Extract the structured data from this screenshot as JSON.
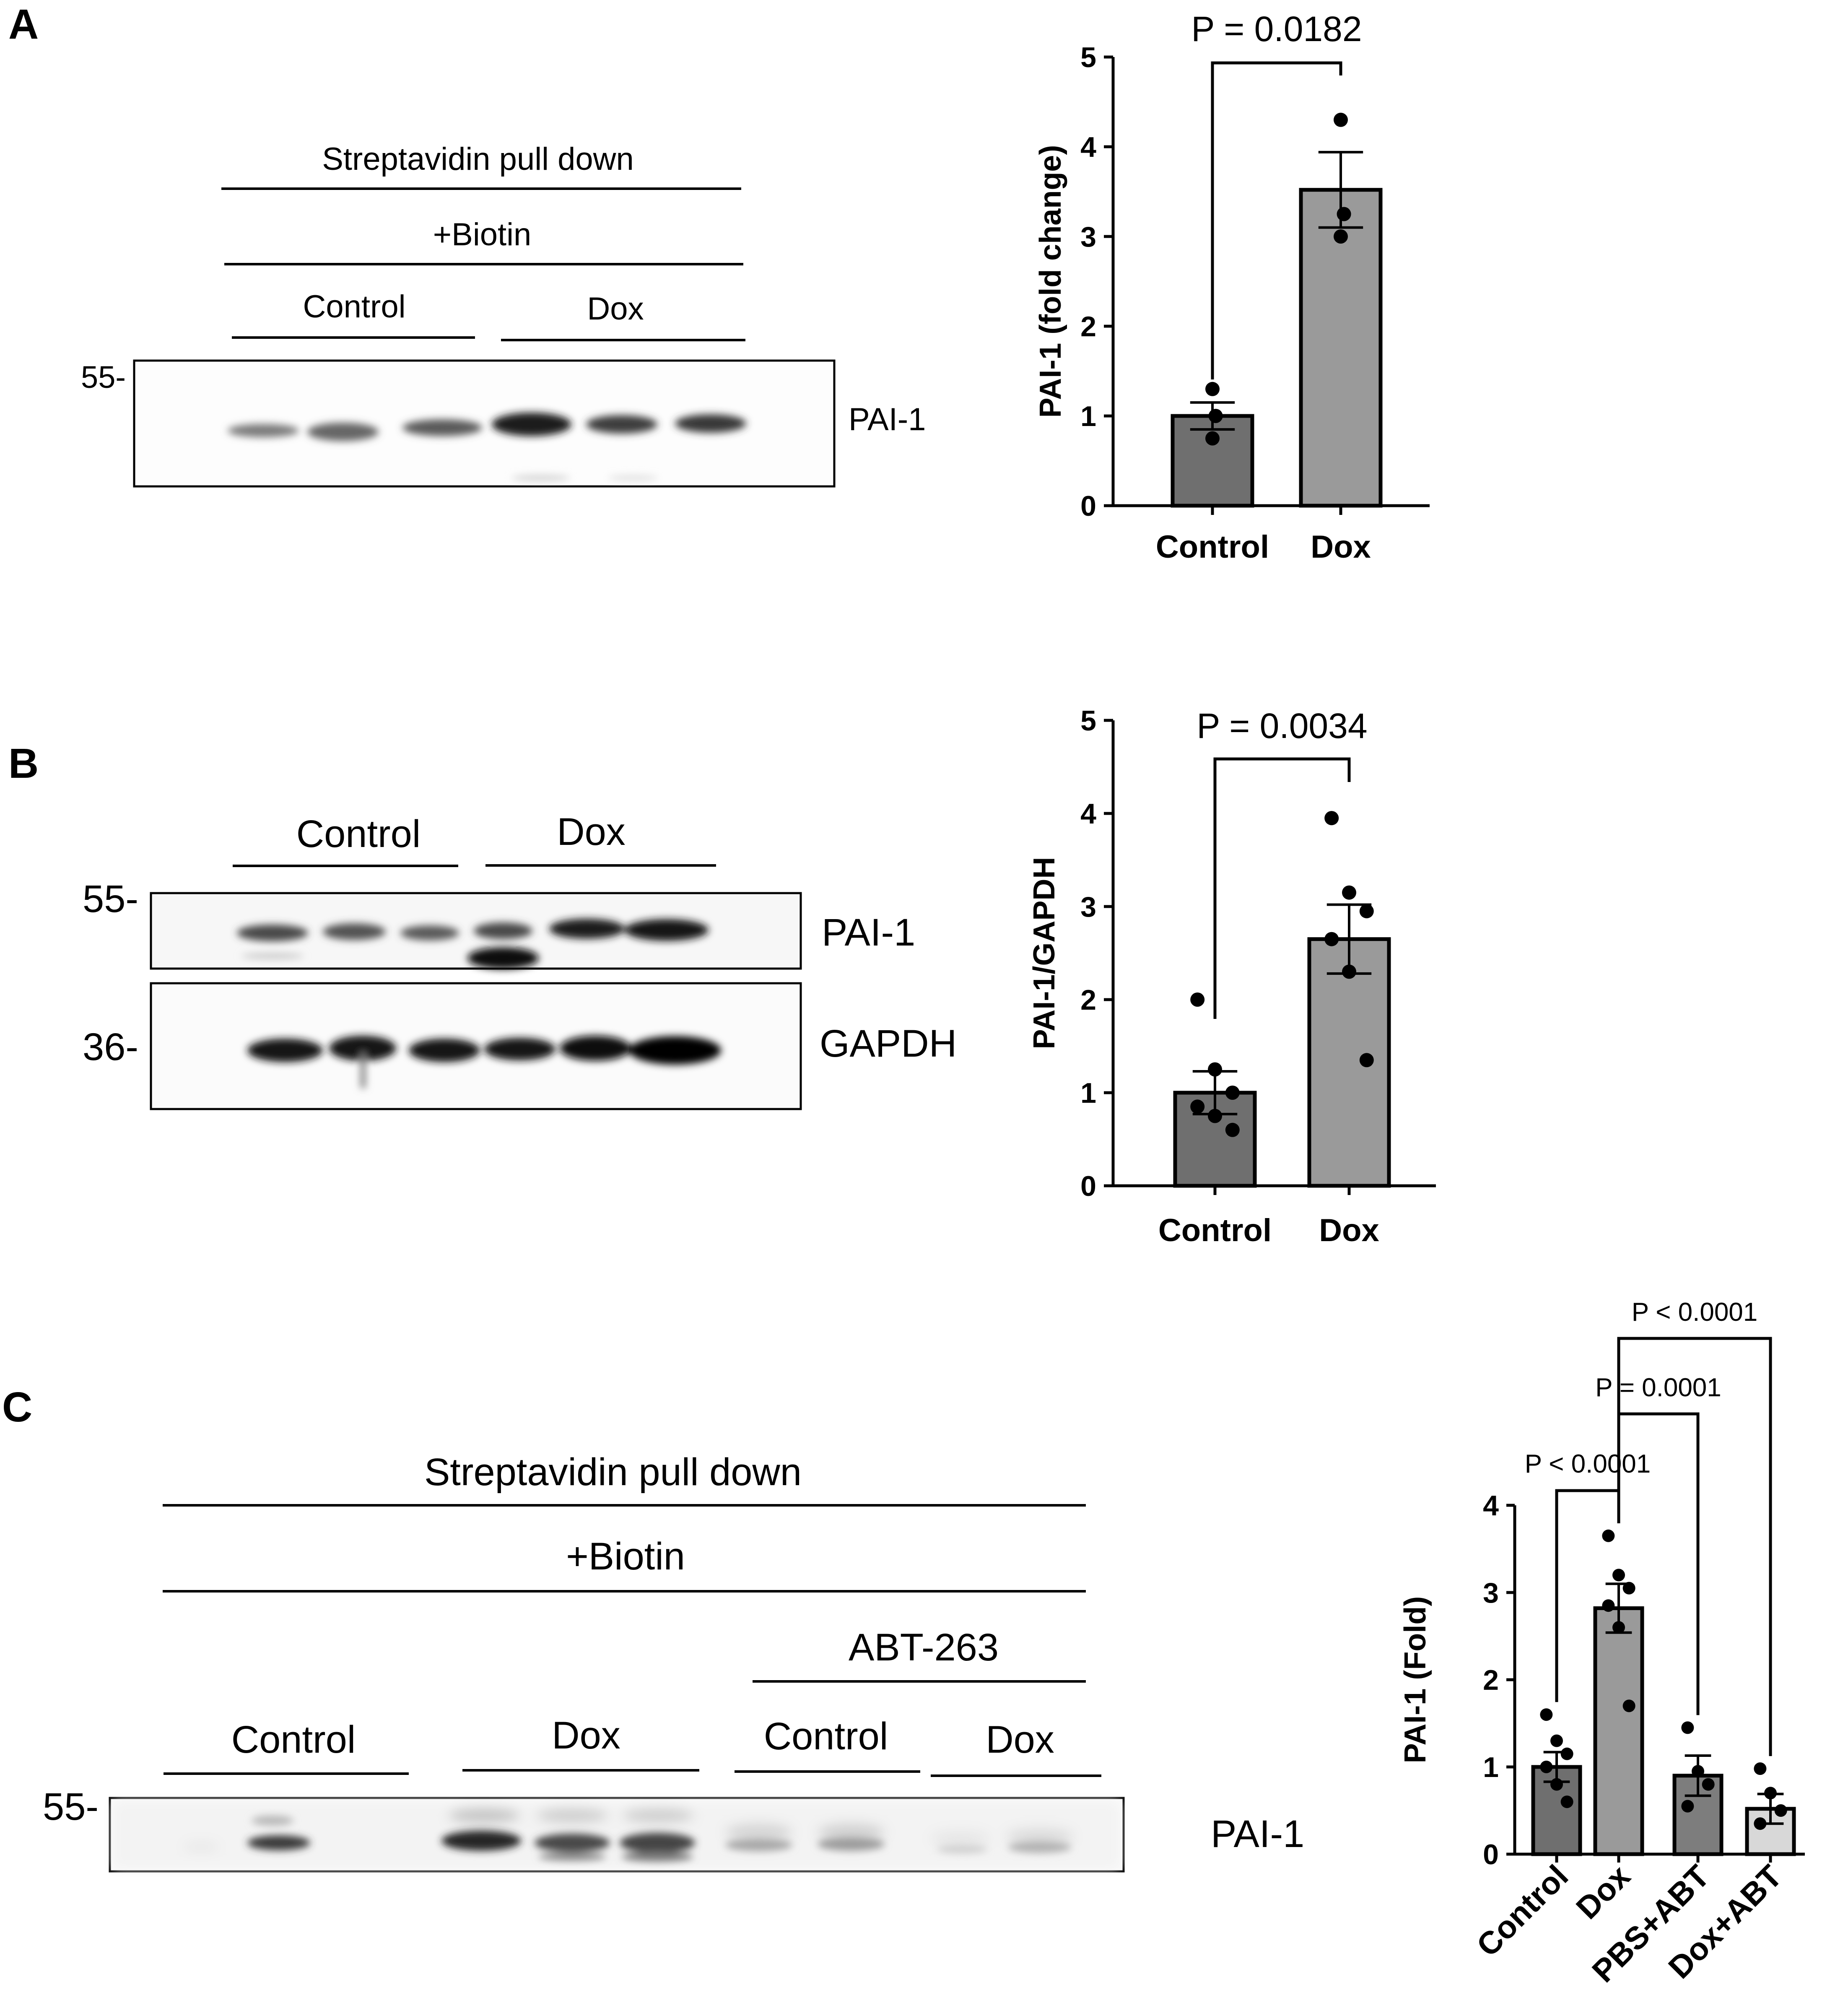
{
  "panels": {
    "A": {
      "label": "A",
      "blot": {
        "header1": "Streptavidin pull down",
        "header2": "+Biotin",
        "group_left": "Control",
        "group_right": "Dox",
        "mw_marker": "55-",
        "band_label": "PAI-1"
      }
    },
    "B": {
      "label": "B",
      "blot": {
        "group_left": "Control",
        "group_right": "Dox",
        "mw_top": "55-",
        "mw_bottom": "36-",
        "band_top": "PAI-1",
        "band_bottom": "GAPDH"
      }
    },
    "C": {
      "label": "C",
      "blot": {
        "header1": "Streptavidin pull down",
        "header2": "+Biotin",
        "treatment": "ABT-263",
        "group1": "Control",
        "group2": "Dox",
        "group3": "Control",
        "group4": "Dox",
        "mw_marker": "55-",
        "band_label": "PAI-1"
      }
    }
  },
  "chart_data": [
    {
      "panel": "A",
      "type": "bar",
      "categories": [
        "Control",
        "Dox"
      ],
      "values": [
        1.0,
        3.52
      ],
      "sem": [
        0.15,
        0.42
      ],
      "points": [
        [
          1.3,
          1.0,
          0.75
        ],
        [
          4.3,
          3.25,
          3.0
        ]
      ],
      "ylabel": "PAI-1 (fold change)",
      "ylim": [
        0,
        5
      ],
      "yticks": [
        "0",
        "1",
        "2",
        "3",
        "4",
        "5"
      ],
      "bar_colors": [
        "#6f6f6f",
        "#9a9a9a"
      ],
      "comparisons": [
        {
          "from": "Control",
          "to": "Dox",
          "label": "P = 0.0182"
        }
      ]
    },
    {
      "panel": "B",
      "type": "bar",
      "categories": [
        "Control",
        "Dox"
      ],
      "values": [
        1.0,
        2.65
      ],
      "sem": [
        0.23,
        0.37
      ],
      "points": [
        [
          2.0,
          1.25,
          1.0,
          0.85,
          0.75,
          0.6
        ],
        [
          3.95,
          3.15,
          2.95,
          2.65,
          2.3,
          1.35
        ]
      ],
      "ylabel": "PAI-1/GAPDH",
      "ylim": [
        0,
        5
      ],
      "yticks": [
        "0",
        "1",
        "2",
        "3",
        "4",
        "5"
      ],
      "bar_colors": [
        "#6f6f6f",
        "#9a9a9a"
      ],
      "comparisons": [
        {
          "from": "Control",
          "to": "Dox",
          "label": "P = 0.0034"
        }
      ]
    },
    {
      "panel": "C",
      "type": "bar",
      "categories": [
        "Control",
        "Dox",
        "PBS+ABT",
        "Dox+ABT"
      ],
      "values": [
        1.0,
        2.82,
        0.9,
        0.52
      ],
      "sem": [
        0.17,
        0.28,
        0.23,
        0.17
      ],
      "points": [
        [
          1.6,
          1.3,
          1.15,
          1.0,
          0.8,
          0.6
        ],
        [
          3.65,
          3.2,
          3.05,
          2.85,
          2.6,
          1.7
        ],
        [
          1.45,
          0.95,
          0.8,
          0.55
        ],
        [
          0.98,
          0.7,
          0.5,
          0.35
        ]
      ],
      "ylabel": "PAI-1 (Fold)",
      "ylim": [
        0,
        4
      ],
      "yticks": [
        "0",
        "1",
        "2",
        "3",
        "4"
      ],
      "bar_colors": [
        "#6f6f6f",
        "#9a9a9a",
        "#7d7d7d",
        "#d8d8d8"
      ],
      "comparisons": [
        {
          "from": "Control",
          "to": "Dox",
          "label": "P < 0.0001"
        },
        {
          "from": "Dox",
          "to": "PBS+ABT",
          "label": "P = 0.0001"
        },
        {
          "from": "Dox",
          "to": "Dox+ABT",
          "label": "P < 0.0001"
        }
      ]
    }
  ]
}
